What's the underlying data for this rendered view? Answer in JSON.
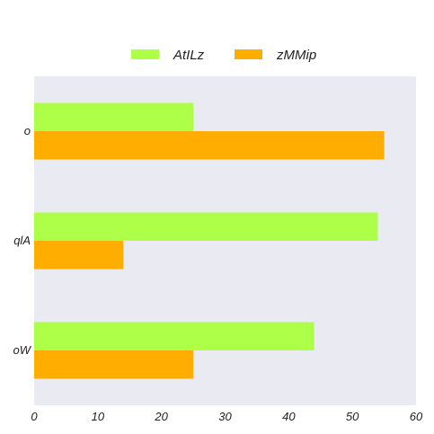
{
  "chart_data": {
    "type": "bar",
    "orientation": "horizontal",
    "categories": [
      "o",
      "qlA",
      "oW"
    ],
    "series": [
      {
        "name": "AtILz",
        "color": "#adff47",
        "values": [
          25,
          54,
          44
        ]
      },
      {
        "name": "zMMip",
        "color": "#ffad00",
        "values": [
          55,
          14,
          25
        ]
      }
    ],
    "xlim": [
      0,
      60
    ],
    "xticks": [
      0,
      10,
      20,
      30,
      40,
      50,
      60
    ],
    "grid": false,
    "legend": "top-center",
    "background": "#eaeaf2"
  }
}
